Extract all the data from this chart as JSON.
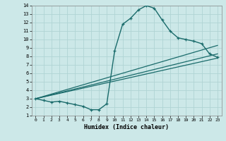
{
  "xlabel": "Humidex (Indice chaleur)",
  "xlim": [
    -0.5,
    23.5
  ],
  "ylim": [
    1,
    14
  ],
  "xticks": [
    0,
    1,
    2,
    3,
    4,
    5,
    6,
    7,
    8,
    9,
    10,
    11,
    12,
    13,
    14,
    15,
    16,
    17,
    18,
    19,
    20,
    21,
    22,
    23
  ],
  "yticks": [
    1,
    2,
    3,
    4,
    5,
    6,
    7,
    8,
    9,
    10,
    11,
    12,
    13,
    14
  ],
  "bg_color": "#cce8e8",
  "line_color": "#1a6b6b",
  "grid_color": "#b0d4d4",
  "curve1_x": [
    0,
    1,
    2,
    3,
    4,
    5,
    6,
    7,
    8,
    9,
    10,
    11,
    12,
    13,
    14,
    15,
    16,
    17,
    18,
    19,
    20,
    21,
    22,
    23
  ],
  "curve1_y": [
    3.0,
    2.8,
    2.6,
    2.7,
    2.5,
    2.3,
    2.1,
    1.7,
    1.7,
    2.4,
    8.7,
    11.8,
    12.5,
    13.5,
    14.0,
    13.7,
    12.3,
    11.0,
    10.2,
    10.0,
    9.8,
    9.5,
    8.3,
    7.9
  ],
  "line1_x": [
    0,
    23
  ],
  "line1_y": [
    3.0,
    9.3
  ],
  "line2_x": [
    0,
    23
  ],
  "line2_y": [
    3.0,
    7.8
  ],
  "line3_x": [
    0,
    23
  ],
  "line3_y": [
    3.0,
    8.3
  ]
}
